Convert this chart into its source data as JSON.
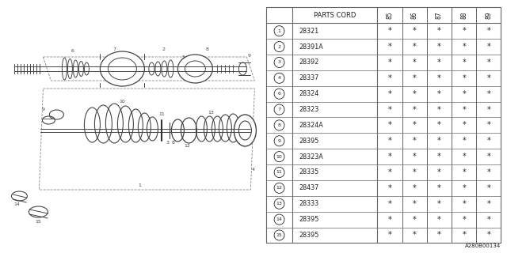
{
  "bg_color": "#ffffff",
  "table_header": "PARTS CORD",
  "year_cols": [
    "85",
    "86",
    "87",
    "88",
    "89"
  ],
  "rows": [
    {
      "num": "1",
      "code": "28321"
    },
    {
      "num": "2",
      "code": "28391A"
    },
    {
      "num": "3",
      "code": "28392"
    },
    {
      "num": "4",
      "code": "28337"
    },
    {
      "num": "6",
      "code": "28324"
    },
    {
      "num": "7",
      "code": "28323"
    },
    {
      "num": "8",
      "code": "28324A"
    },
    {
      "num": "9",
      "code": "28395"
    },
    {
      "num": "10",
      "code": "28323A"
    },
    {
      "num": "11",
      "code": "28335"
    },
    {
      "num": "12",
      "code": "28437"
    },
    {
      "num": "13",
      "code": "28333"
    },
    {
      "num": "14",
      "code": "28395"
    },
    {
      "num": "15",
      "code": "28395"
    }
  ],
  "footnote": "A280B00134",
  "line_color": "#666666",
  "text_color": "#222222",
  "diagram_color": "#444444"
}
